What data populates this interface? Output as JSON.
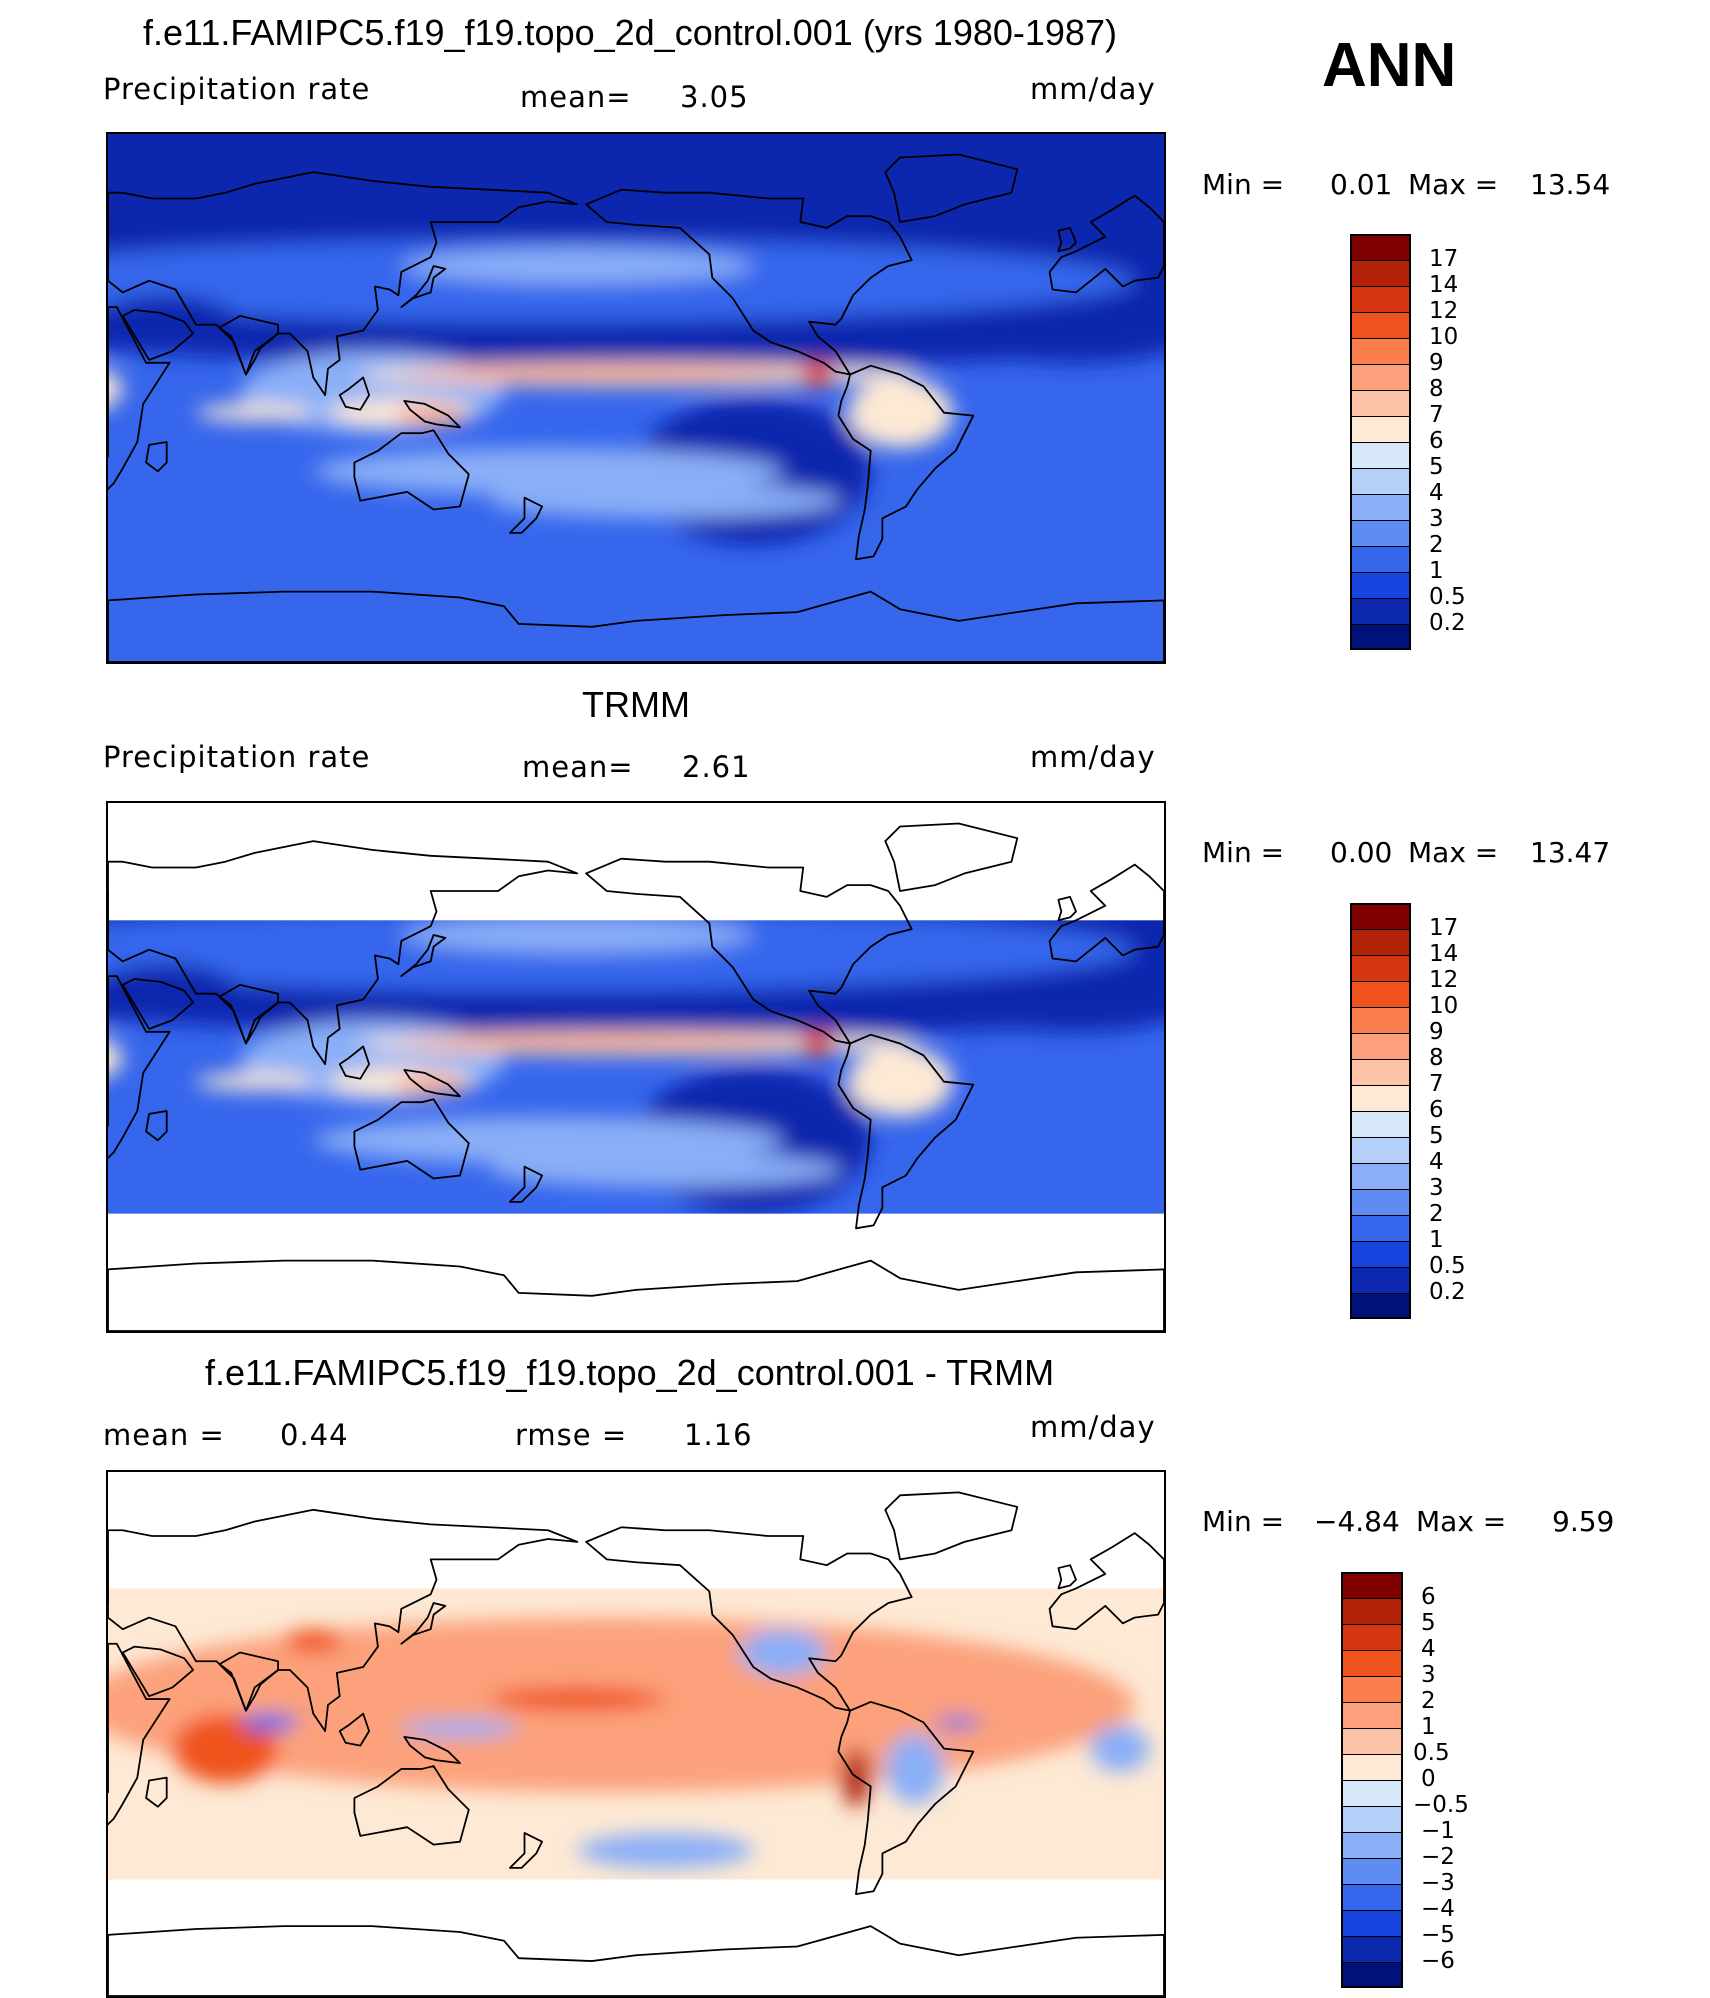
{
  "season": "ANN",
  "panels": [
    {
      "id": "model",
      "title": "f.e11.FAMIPC5.f19_f19.topo_2d_control.001 (yrs 1980-1987)",
      "left_label": "Precipitation  rate",
      "center_label": "mean=",
      "center_value": "3.05",
      "units": "mm/day",
      "stats": {
        "min_label": "Min  =",
        "min": "0.01",
        "max_label": "Max  =",
        "max": "13.54"
      },
      "coverage": "global"
    },
    {
      "id": "obs",
      "title": "TRMM",
      "left_label": "Precipitation  rate",
      "center_label": "mean=",
      "center_value": "2.61",
      "units": "mm/day",
      "stats": {
        "min_label": "Min  =",
        "min": "0.00",
        "max_label": "Max  =",
        "max": "13.47"
      },
      "coverage": "50S-50N"
    },
    {
      "id": "diff",
      "title": "f.e11.FAMIPC5.f19_f19.topo_2d_control.001 - TRMM",
      "left_label": "mean  =",
      "left_value": "0.44",
      "center_label": "rmse  =",
      "center_value": "1.16",
      "units": "mm/day",
      "stats": {
        "min_label": "Min  =",
        "min": "−4.84",
        "max_label": "Max  =",
        "max": "9.59"
      },
      "coverage": "50S-50N"
    }
  ],
  "colorbars": {
    "precip": {
      "levels": [
        "17",
        "14",
        "12",
        "10",
        "9",
        "8",
        "7",
        "6",
        "5",
        "4",
        "3",
        "2",
        "1",
        "0.5",
        "0.2"
      ],
      "colors": [
        "#7f0000",
        "#b22209",
        "#d6360f",
        "#f0521d",
        "#f97e4c",
        "#fca17c",
        "#fdc3a6",
        "#fde9d4",
        "#d7e8f8",
        "#b5d0f8",
        "#8aaff7",
        "#5f8cf2",
        "#3666ec",
        "#1744de",
        "#0c28ae",
        "#00117a"
      ]
    },
    "diff": {
      "levels": [
        "6",
        "5",
        "4",
        "3",
        "2",
        "1",
        "0.5",
        "0",
        "−0.5",
        "−1",
        "−2",
        "−3",
        "−4",
        "−5",
        "−6"
      ],
      "colors": [
        "#7f0000",
        "#b22209",
        "#d6360f",
        "#f0521d",
        "#f97e4c",
        "#fca17c",
        "#fdc3a6",
        "#fde9d4",
        "#d7e8f8",
        "#b5d0f8",
        "#8aaff7",
        "#5f8cf2",
        "#3666ec",
        "#1744de",
        "#0c28ae",
        "#00117a"
      ]
    }
  },
  "palette": {
    "deep_blue": "#0c28ae",
    "mid_blue": "#3666ec",
    "light_blue": "#8aaff7",
    "pale": "#fde9d4",
    "salmon": "#fca17c",
    "red": "#f0521d",
    "dark_red": "#b22209"
  }
}
